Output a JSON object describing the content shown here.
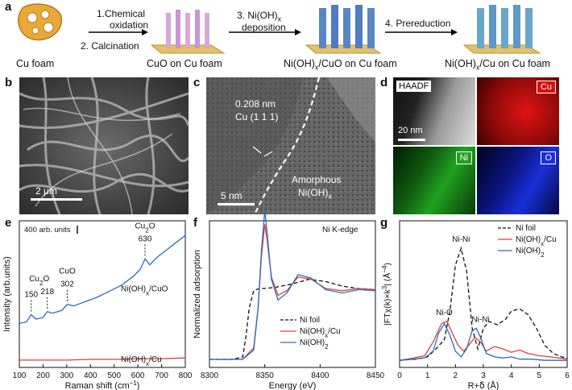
{
  "panel_labels": {
    "a": "a",
    "b": "b",
    "c": "c",
    "d": "d",
    "e": "e",
    "f": "f",
    "g": "g"
  },
  "scheme": {
    "step1": "1.Chemical",
    "step1b": "oxidation",
    "step2": "2. Calcination",
    "step3": "3. Ni(OH)",
    "step3_sub": "x",
    "step3b": "deposition",
    "step4": "4. Prereduction",
    "label_cu_foam": "Cu foam",
    "label_cuo": "CuO on Cu foam",
    "label_niohcuo_a": "Ni(OH)",
    "label_niohcuo_sub": "x",
    "label_niohcuo_b": "/CuO on Cu foam",
    "label_niohcu_a": "Ni(OH)",
    "label_niohcu_sub": "x",
    "label_niohcu_b": "/Cu on Cu foam"
  },
  "sem": {
    "scale": "2 μm"
  },
  "tem": {
    "d_spacing": "0.208 nm",
    "plane": "Cu (1 1 1)",
    "amorphous": "Amorphous",
    "amorphous_b": "Ni(OH)",
    "amorphous_sub": "x",
    "scale": "5 nm"
  },
  "eds": {
    "haadf": "HAADF",
    "cu": "Cu",
    "ni": "Ni",
    "o": "O",
    "scale": "20 nm",
    "colors": {
      "cu": "#d41010",
      "ni": "#1fa11f",
      "o": "#1a2fd8"
    }
  },
  "chart_data": [
    {
      "panel": "e",
      "type": "line",
      "xlabel": "Raman shift (cm",
      "xlabel_sup": "−1",
      "xlabel_end": ")",
      "ylabel": "Intensity (arb.units)",
      "xlim": [
        100,
        800
      ],
      "xticks": [
        "100",
        "200",
        "300",
        "400",
        "500",
        "600",
        "700",
        "800"
      ],
      "scale_bar": "400 arb. units",
      "peaks": [
        {
          "x": 150,
          "label": "150"
        },
        {
          "x": 218,
          "label": "218"
        },
        {
          "x": 302,
          "label": "302"
        },
        {
          "x": 630,
          "label": "630"
        }
      ],
      "peak_groups": [
        {
          "label": "Cu",
          "sub": "2",
          "end": "O"
        },
        {
          "label": "CuO",
          "sub": "",
          "end": ""
        },
        {
          "label": "Cu",
          "sub": "2",
          "end": "O"
        }
      ],
      "series": [
        {
          "name_a": "Ni(OH)",
          "name_sub": "x",
          "name_b": "/CuO",
          "color": "#2c6db4",
          "x": [
            100,
            130,
            150,
            170,
            200,
            218,
            240,
            280,
            302,
            330,
            380,
            430,
            480,
            530,
            580,
            610,
            630,
            650,
            680,
            720,
            760,
            800
          ],
          "y": [
            0.3,
            0.31,
            0.36,
            0.33,
            0.34,
            0.38,
            0.37,
            0.39,
            0.43,
            0.42,
            0.45,
            0.48,
            0.52,
            0.56,
            0.62,
            0.67,
            0.74,
            0.7,
            0.75,
            0.8,
            0.85,
            0.9
          ]
        },
        {
          "name_a": "Ni(OH)",
          "name_sub": "x",
          "name_b": "/Cu",
          "color": "#d94040",
          "x": [
            100,
            200,
            300,
            400,
            500,
            600,
            700,
            800
          ],
          "y": [
            0.05,
            0.05,
            0.05,
            0.055,
            0.055,
            0.06,
            0.06,
            0.065
          ]
        }
      ]
    },
    {
      "panel": "f",
      "type": "line",
      "annotation": "Ni K-edge",
      "xlabel": "Energy (eV)",
      "ylabel": "Normalized adsorption",
      "xlim": [
        8300,
        8450
      ],
      "xticks": [
        "8300",
        "8350",
        "8400",
        "8450"
      ],
      "series": [
        {
          "name": "Ni foil",
          "color": "#111111",
          "dash": true,
          "x": [
            8300,
            8320,
            8330,
            8333,
            8336,
            8340,
            8345,
            8350,
            8360,
            8375,
            8390,
            8405,
            8420,
            8435,
            8450
          ],
          "y": [
            0.0,
            0.0,
            0.02,
            0.2,
            0.45,
            0.6,
            0.62,
            0.62,
            0.63,
            0.66,
            0.7,
            0.68,
            0.64,
            0.62,
            0.61
          ]
        },
        {
          "name_a": "Ni(OH)",
          "name_sub": "x",
          "name_b": "/Cu",
          "color": "#d94040",
          "x": [
            8300,
            8330,
            8340,
            8344,
            8347,
            8350,
            8352,
            8356,
            8362,
            8370,
            8380,
            8392,
            8405,
            8420,
            8435,
            8450
          ],
          "y": [
            0.0,
            0.0,
            0.1,
            0.45,
            0.9,
            1.18,
            1.05,
            0.72,
            0.56,
            0.6,
            0.72,
            0.7,
            0.62,
            0.6,
            0.62,
            0.61
          ]
        },
        {
          "name_a": "Ni(OH)",
          "name_sub": "2",
          "name_b": "",
          "color": "#2c6db4",
          "x": [
            8300,
            8330,
            8340,
            8344,
            8347,
            8350,
            8352,
            8356,
            8362,
            8370,
            8380,
            8392,
            8405,
            8420,
            8435,
            8450
          ],
          "y": [
            0.0,
            0.0,
            0.08,
            0.45,
            0.95,
            1.3,
            1.12,
            0.7,
            0.52,
            0.58,
            0.74,
            0.71,
            0.61,
            0.58,
            0.61,
            0.6
          ]
        }
      ]
    },
    {
      "panel": "g",
      "type": "line",
      "xlabel": "R+ẟ (Å)",
      "ylabel_a": "|FT",
      "ylabel_b": "χ(k)×k",
      "ylabel_sup": "3",
      "ylabel_c": "| (Å",
      "ylabel_sup2": "−4",
      "ylabel_d": ")",
      "xlim": [
        0,
        6
      ],
      "xticks": [
        "0",
        "1",
        "2",
        "3",
        "4",
        "5",
        "6"
      ],
      "annotations": [
        "Ni-Ni",
        "Ni-O",
        "Ni-Ni"
      ],
      "series": [
        {
          "name": "Ni foil",
          "color": "#111111",
          "dash": true,
          "x": [
            0,
            0.6,
            1.0,
            1.3,
            1.6,
            1.8,
            2.0,
            2.2,
            2.4,
            2.6,
            2.8,
            3.0,
            3.2,
            3.5,
            3.8,
            4.0,
            4.3,
            4.6,
            4.9,
            5.2,
            5.5,
            5.8,
            6.0
          ],
          "y": [
            0.02,
            0.03,
            0.05,
            0.12,
            0.2,
            0.45,
            0.85,
            1.0,
            0.8,
            0.3,
            0.12,
            0.3,
            0.36,
            0.33,
            0.38,
            0.45,
            0.47,
            0.42,
            0.3,
            0.15,
            0.08,
            0.05,
            0.04
          ]
        },
        {
          "name_a": "Ni(OH)",
          "name_sub": "x",
          "name_b": "/Cu",
          "color": "#d94040",
          "x": [
            0,
            0.5,
            0.9,
            1.2,
            1.5,
            1.7,
            1.9,
            2.1,
            2.3,
            2.5,
            2.7,
            2.9,
            3.1,
            3.4,
            3.7,
            4.0,
            4.3,
            4.6,
            5.0,
            5.4,
            6.0
          ],
          "y": [
            0.02,
            0.04,
            0.06,
            0.18,
            0.34,
            0.36,
            0.25,
            0.15,
            0.1,
            0.16,
            0.22,
            0.18,
            0.1,
            0.14,
            0.12,
            0.09,
            0.11,
            0.08,
            0.06,
            0.05,
            0.03
          ]
        },
        {
          "name_a": "Ni(OH)",
          "name_sub": "2",
          "name_b": "",
          "color": "#2c6db4",
          "x": [
            0,
            0.5,
            0.9,
            1.2,
            1.4,
            1.6,
            1.8,
            2.0,
            2.2,
            2.4,
            2.6,
            2.75,
            2.9,
            3.1,
            3.4,
            3.7,
            4.0,
            4.3,
            4.7,
            5.2,
            6.0
          ],
          "y": [
            0.02,
            0.03,
            0.04,
            0.1,
            0.26,
            0.34,
            0.24,
            0.1,
            0.05,
            0.12,
            0.28,
            0.3,
            0.22,
            0.08,
            0.05,
            0.04,
            0.05,
            0.03,
            0.03,
            0.02,
            0.02
          ]
        }
      ]
    }
  ]
}
